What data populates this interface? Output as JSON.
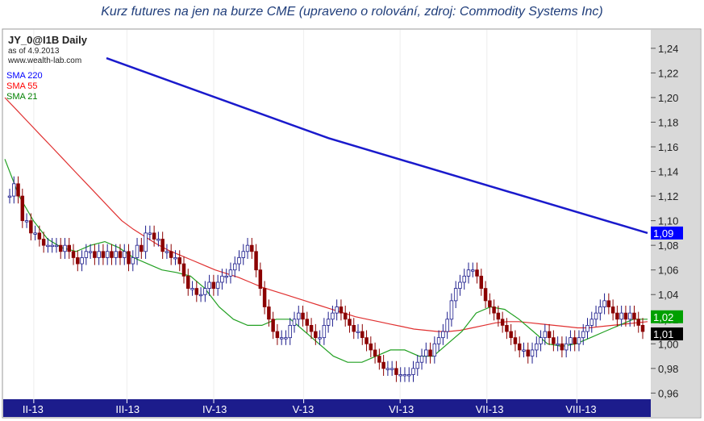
{
  "caption": "Kurz futures na jen na burze CME (upraveno o rolování, zdroj: Commodity Systems Inc)",
  "chart_data": {
    "type": "candlestick",
    "title": "JY_0@I1B Daily",
    "as_of": "as of 4.9.2013",
    "watermark": "www.wealth-lab.com",
    "legend": [
      {
        "name": "SMA 220",
        "color": "#0000ff"
      },
      {
        "name": "SMA 55",
        "color": "#ff0000"
      },
      {
        "name": "SMA 21",
        "color": "#008000"
      }
    ],
    "ylim": [
      0.955,
      1.255
    ],
    "yticks": [
      "1,24",
      "1,22",
      "1,20",
      "1,18",
      "1,16",
      "1,14",
      "1,12",
      "1,10",
      "1,08",
      "1,06",
      "1,04",
      "1,02",
      "1,00",
      "0,98",
      "0,96"
    ],
    "ytick_values": [
      1.24,
      1.22,
      1.2,
      1.18,
      1.16,
      1.14,
      1.12,
      1.1,
      1.08,
      1.06,
      1.04,
      1.02,
      1.0,
      0.98,
      0.96
    ],
    "xticks": [
      "II-13",
      "III-13",
      "IV-13",
      "V-13",
      "VI-13",
      "VII-13",
      "VIII-13"
    ],
    "last_values": [
      {
        "label": "1,09",
        "value": 1.09,
        "bg": "#0000ff",
        "fg": "#ffffff"
      },
      {
        "label": "1,02",
        "value": 1.02,
        "bg": "#00a000",
        "fg": "#ffffff"
      },
      {
        "label": "1,01",
        "value": 1.01,
        "bg": "#000000",
        "fg": "#ffffff"
      }
    ],
    "closes": [
      1.12,
      1.13,
      1.12,
      1.1,
      1.1,
      1.09,
      1.09,
      1.085,
      1.08,
      1.08,
      1.08,
      1.08,
      1.075,
      1.08,
      1.075,
      1.07,
      1.065,
      1.07,
      1.075,
      1.075,
      1.07,
      1.075,
      1.07,
      1.075,
      1.07,
      1.075,
      1.07,
      1.075,
      1.065,
      1.07,
      1.08,
      1.075,
      1.09,
      1.09,
      1.085,
      1.085,
      1.075,
      1.075,
      1.07,
      1.07,
      1.065,
      1.055,
      1.045,
      1.045,
      1.04,
      1.04,
      1.045,
      1.05,
      1.045,
      1.05,
      1.055,
      1.055,
      1.06,
      1.065,
      1.07,
      1.075,
      1.08,
      1.075,
      1.06,
      1.045,
      1.03,
      1.02,
      1.01,
      1.005,
      1.005,
      1.005,
      1.015,
      1.02,
      1.025,
      1.02,
      1.015,
      1.01,
      1.005,
      1.005,
      1.015,
      1.02,
      1.025,
      1.03,
      1.025,
      1.02,
      1.015,
      1.01,
      1.01,
      1.005,
      1.0,
      0.995,
      0.99,
      0.985,
      0.98,
      0.98,
      0.98,
      0.975,
      0.975,
      0.975,
      0.975,
      0.98,
      0.985,
      0.99,
      0.995,
      0.99,
      1.0,
      1.005,
      1.01,
      1.02,
      1.035,
      1.045,
      1.05,
      1.055,
      1.06,
      1.06,
      1.055,
      1.045,
      1.035,
      1.03,
      1.025,
      1.02,
      1.015,
      1.01,
      1.005,
      1.0,
      0.995,
      0.995,
      0.99,
      0.995,
      1.0,
      1.005,
      1.01,
      1.005,
      1.0,
      1.0,
      0.995,
      1.0,
      1.005,
      1.0,
      1.005,
      1.01,
      1.015,
      1.02,
      1.025,
      1.03,
      1.035,
      1.03,
      1.025,
      1.02,
      1.025,
      1.02,
      1.025,
      1.02,
      1.015,
      1.01
    ],
    "sma220_start": 1.232,
    "sma220_end": 1.09,
    "sma55": [
      1.2,
      1.19,
      1.18,
      1.17,
      1.16,
      1.15,
      1.14,
      1.13,
      1.12,
      1.11,
      1.1,
      1.093,
      1.087,
      1.081,
      1.076,
      1.072,
      1.068,
      1.064,
      1.06,
      1.057,
      1.054,
      1.05,
      1.046,
      1.043,
      1.04,
      1.037,
      1.034,
      1.031,
      1.028,
      1.025,
      1.022,
      1.02,
      1.018,
      1.016,
      1.014,
      1.012,
      1.011,
      1.01,
      1.01,
      1.011,
      1.013,
      1.015,
      1.017,
      1.018,
      1.018,
      1.017,
      1.016,
      1.015,
      1.014,
      1.013,
      1.013,
      1.014,
      1.015,
      1.016,
      1.017,
      1.018
    ],
    "sma21": [
      1.15,
      1.12,
      1.1,
      1.085,
      1.078,
      1.075,
      1.08,
      1.083,
      1.078,
      1.07,
      1.065,
      1.06,
      1.058,
      1.055,
      1.045,
      1.03,
      1.02,
      1.015,
      1.015,
      1.02,
      1.02,
      1.01,
      1.0,
      0.99,
      0.985,
      0.985,
      0.99,
      0.995,
      0.995,
      0.99,
      0.99,
      1.0,
      1.01,
      1.025,
      1.03,
      1.028,
      1.02,
      1.01,
      1.0,
      0.998,
      1.0,
      1.005,
      1.01,
      1.015,
      1.02,
      1.02
    ]
  }
}
